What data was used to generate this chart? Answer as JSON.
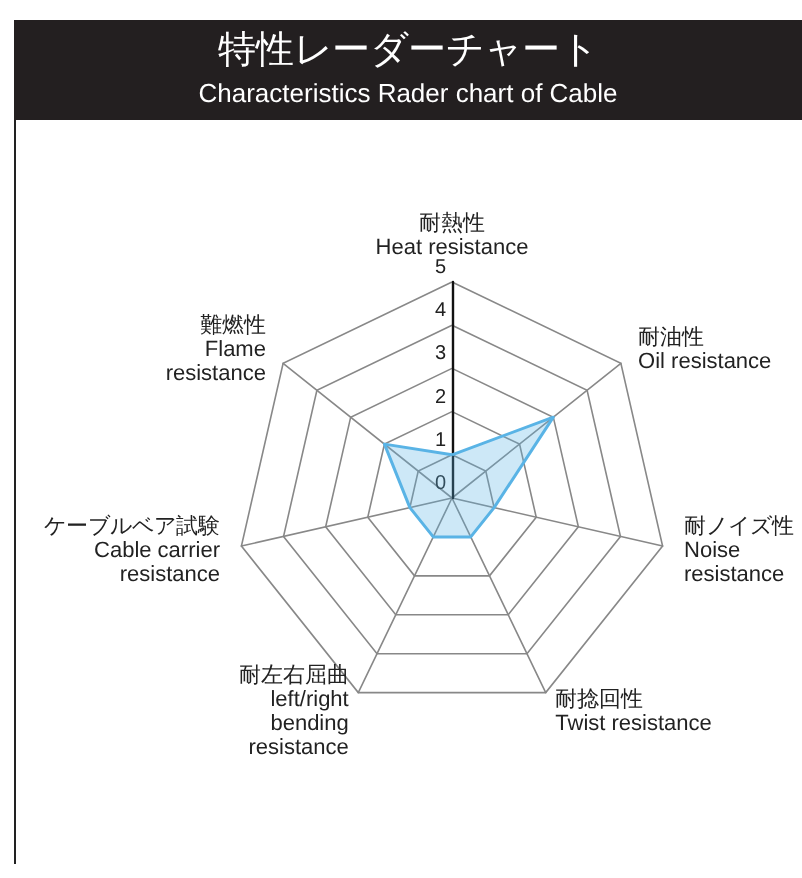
{
  "chart_data": {
    "type": "radar",
    "title": "特性レーダーチャート",
    "subtitle": "Characteristics Rader chart of Cable",
    "categories": [
      "耐熱性\nHeat resistance",
      "耐油性\nOil resistance",
      "耐ノイズ性\nNoise\nresistance",
      "耐捻回性\nTwist resistance",
      "耐左右屈曲\nleft/right\nbending\nresistance",
      "ケーブルベア試験\nCable carrier\nresistance",
      "難燃性\nFlame\nresistance"
    ],
    "series": [
      {
        "color": "#5ab4e6",
        "values": [
          1,
          3,
          1,
          1,
          1,
          1,
          2
        ]
      }
    ],
    "ylim": [
      0,
      5
    ],
    "yticks": [
      0,
      1,
      2,
      3,
      4,
      5
    ]
  }
}
